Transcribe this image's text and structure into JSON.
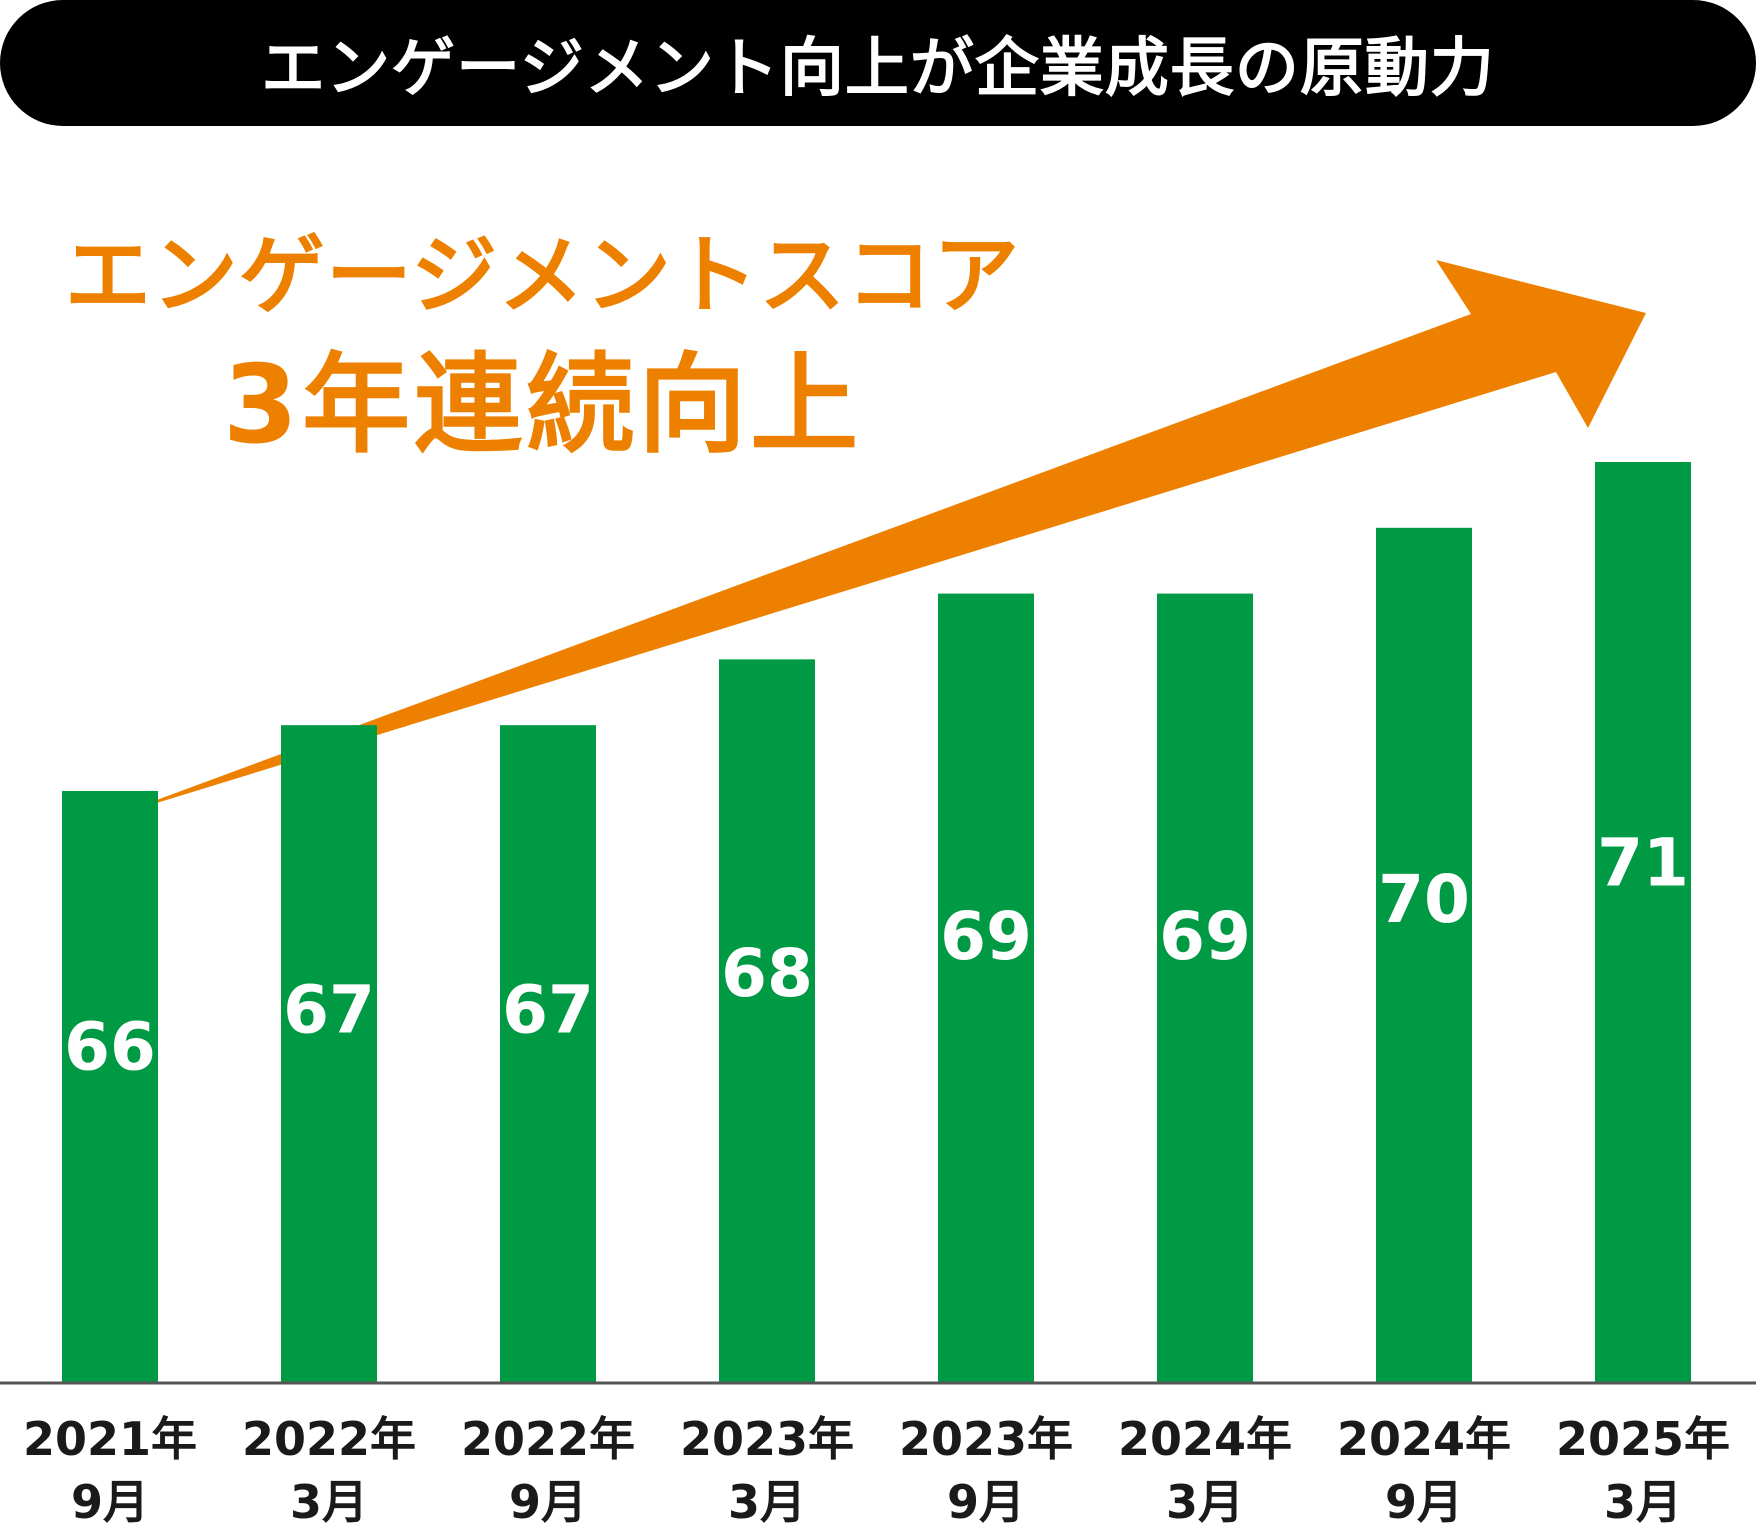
{
  "banner": {
    "text": "エンゲージメント向上が企業成長の原動力"
  },
  "headline": {
    "line1": "エンゲージメントスコア",
    "line2": "3年連続向上"
  },
  "colors": {
    "bar": "#009a44",
    "arrow": "#ee8000",
    "banner_bg": "#000000",
    "text_dark": "#1a1a1a",
    "value_text": "#ffffff",
    "axis": "#555555"
  },
  "chart_data": {
    "type": "bar",
    "categories": [
      [
        "2021年",
        "9月"
      ],
      [
        "2022年",
        "3月"
      ],
      [
        "2022年",
        "9月"
      ],
      [
        "2023年",
        "3月"
      ],
      [
        "2023年",
        "9月"
      ],
      [
        "2024年",
        "3月"
      ],
      [
        "2024年",
        "9月"
      ],
      [
        "2025年",
        "3月"
      ]
    ],
    "values": [
      66,
      67,
      67,
      68,
      69,
      69,
      70,
      71
    ],
    "title": "",
    "xlabel": "",
    "ylabel": "",
    "grid": false,
    "legend": "none",
    "trend_arrow": true
  }
}
